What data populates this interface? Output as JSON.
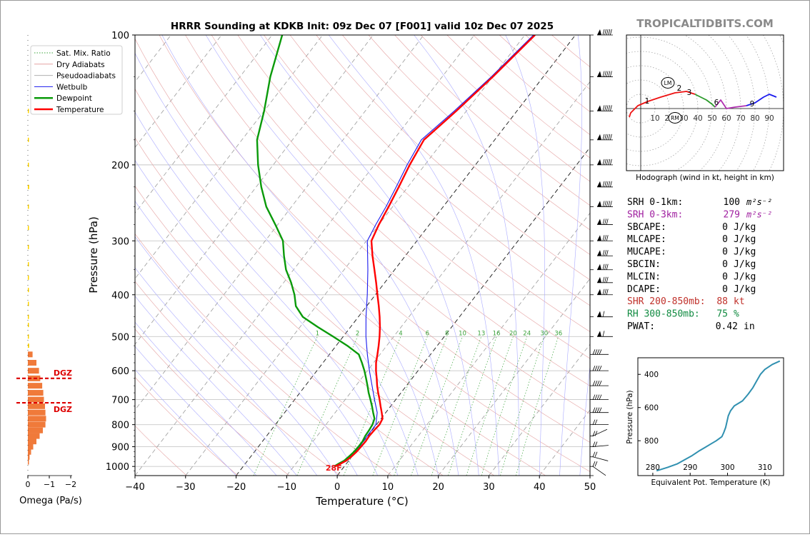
{
  "brand": "TROPICALTIDBITS.COM",
  "title": "HRRR Sounding at KDKB Init: 09z Dec 07 [F001] valid 10z Dec 07 2025",
  "chart_data": [
    {
      "type": "line",
      "name": "skew-t",
      "xlabel": "Temperature (°C)",
      "ylabel": "Pressure (hPa)",
      "xlim": [
        -40,
        50
      ],
      "ylim": [
        1050,
        100
      ],
      "yscale": "log",
      "skew": "isotherms slanted right",
      "x_ticks": [
        -40,
        -30,
        -20,
        -10,
        0,
        10,
        20,
        30,
        40,
        50
      ],
      "y_ticks": [
        100,
        200,
        300,
        400,
        500,
        600,
        700,
        800,
        900,
        1000
      ],
      "grid": true,
      "legend": {
        "position": "top-left",
        "entries": [
          "Sat. Mix. Ratio",
          "Dry Adiabats",
          "Pseudoadiabats",
          "Wetbulb",
          "Dewpoint",
          "Temperature"
        ]
      },
      "mixing_ratio_labels": [
        "1",
        "2",
        "4",
        "6",
        "8",
        "10",
        "13",
        "16",
        "20",
        "24",
        "30",
        "36"
      ],
      "surface_temp_label": "28F",
      "series": [
        {
          "name": "Temperature",
          "color": "#ff0000",
          "points": [
            [
              1000,
              -1.8
            ],
            [
              985,
              -1.1
            ],
            [
              970,
              -0.5
            ],
            [
              950,
              -0.1
            ],
            [
              925,
              0.2
            ],
            [
              900,
              0.3
            ],
            [
              875,
              0.4
            ],
            [
              850,
              0.3
            ],
            [
              825,
              0.4
            ],
            [
              800,
              0.6
            ],
            [
              775,
              0.3
            ],
            [
              750,
              -0.8
            ],
            [
              725,
              -2.0
            ],
            [
              700,
              -3.2
            ],
            [
              675,
              -4.5
            ],
            [
              650,
              -5.8
            ],
            [
              625,
              -7.0
            ],
            [
              600,
              -8.3
            ],
            [
              575,
              -9.5
            ],
            [
              550,
              -10.5
            ],
            [
              525,
              -11.6
            ],
            [
              500,
              -12.8
            ],
            [
              475,
              -14.2
            ],
            [
              450,
              -15.8
            ],
            [
              425,
              -17.6
            ],
            [
              400,
              -19.6
            ],
            [
              375,
              -21.7
            ],
            [
              350,
              -24.0
            ],
            [
              325,
              -26.5
            ],
            [
              300,
              -29.0
            ],
            [
              275,
              -30.0
            ],
            [
              250,
              -30.8
            ],
            [
              225,
              -31.8
            ],
            [
              200,
              -33.0
            ],
            [
              175,
              -34.0
            ],
            [
              150,
              -32.0
            ],
            [
              125,
              -30.0
            ],
            [
              100,
              -28.0
            ]
          ]
        },
        {
          "name": "Dewpoint",
          "color": "#0a9a0a",
          "points": [
            [
              1000,
              -2.0
            ],
            [
              985,
              -1.5
            ],
            [
              970,
              -0.9
            ],
            [
              950,
              -0.6
            ],
            [
              925,
              -0.3
            ],
            [
              900,
              -0.2
            ],
            [
              875,
              -0.2
            ],
            [
              850,
              -0.5
            ],
            [
              825,
              -0.6
            ],
            [
              800,
              -0.8
            ],
            [
              775,
              -1.3
            ],
            [
              750,
              -2.5
            ],
            [
              725,
              -3.7
            ],
            [
              700,
              -5.0
            ],
            [
              675,
              -6.4
            ],
            [
              650,
              -7.7
            ],
            [
              625,
              -9.1
            ],
            [
              600,
              -10.6
            ],
            [
              575,
              -12.3
            ],
            [
              550,
              -14.2
            ],
            [
              525,
              -17.8
            ],
            [
              500,
              -22.0
            ],
            [
              475,
              -26.5
            ],
            [
              450,
              -31.0
            ],
            [
              425,
              -34.0
            ],
            [
              400,
              -36.0
            ],
            [
              375,
              -38.5
            ],
            [
              350,
              -41.5
            ],
            [
              325,
              -44.0
            ],
            [
              300,
              -46.5
            ],
            [
              275,
              -50.5
            ],
            [
              250,
              -55.0
            ],
            [
              225,
              -59.0
            ],
            [
              200,
              -63.0
            ],
            [
              175,
              -67.0
            ],
            [
              150,
              -70.0
            ],
            [
              125,
              -74.0
            ],
            [
              100,
              -78.0
            ]
          ]
        },
        {
          "name": "Wetbulb",
          "color": "#1a1aee",
          "points": [
            [
              1000,
              -1.9
            ],
            [
              950,
              -0.4
            ],
            [
              900,
              0.0
            ],
            [
              850,
              -0.1
            ],
            [
              800,
              -0.1
            ],
            [
              750,
              -1.7
            ],
            [
              700,
              -4.2
            ],
            [
              650,
              -6.8
            ],
            [
              600,
              -9.6
            ],
            [
              550,
              -12.5
            ],
            [
              500,
              -15.5
            ],
            [
              450,
              -18.5
            ],
            [
              400,
              -21.6
            ],
            [
              350,
              -25.3
            ],
            [
              300,
              -29.8
            ],
            [
              275,
              -30.6
            ],
            [
              250,
              -31.3
            ],
            [
              225,
              -32.3
            ],
            [
              200,
              -33.5
            ],
            [
              175,
              -34.5
            ],
            [
              150,
              -32.4
            ],
            [
              125,
              -30.3
            ],
            [
              100,
              -28.3
            ]
          ]
        }
      ]
    },
    {
      "type": "bar",
      "name": "omega",
      "xlabel": "Omega (Pa/s)",
      "x_ticks": [
        "0",
        "−1",
        "−2"
      ],
      "xlim": [
        0,
        -2
      ],
      "dgz_label": "DGZ",
      "dgz_levels": [
        625,
        712
      ],
      "series": [
        {
          "name": "upper",
          "color": "#ffd400",
          "points": [
            [
              150,
              -0.05
            ],
            [
              175,
              -0.05
            ],
            [
              200,
              -0.05
            ],
            [
              225,
              -0.06
            ],
            [
              250,
              -0.05
            ],
            [
              280,
              -0.03
            ],
            [
              310,
              -0.03
            ],
            [
              340,
              -0.04
            ],
            [
              365,
              -0.05
            ],
            [
              390,
              -0.05
            ],
            [
              420,
              -0.04
            ],
            [
              450,
              -0.02
            ],
            [
              470,
              -0.02
            ],
            [
              500,
              -0.05
            ],
            [
              525,
              -0.06
            ]
          ]
        },
        {
          "name": "lower",
          "color": "#f07a3a",
          "points": [
            [
              550,
              -0.22
            ],
            [
              575,
              -0.4
            ],
            [
              600,
              -0.52
            ],
            [
              625,
              -0.58
            ],
            [
              650,
              -0.67
            ],
            [
              675,
              -0.72
            ],
            [
              700,
              -0.75
            ],
            [
              725,
              -0.8
            ],
            [
              750,
              -0.82
            ],
            [
              775,
              -0.85
            ],
            [
              800,
              -0.82
            ],
            [
              825,
              -0.7
            ],
            [
              850,
              -0.55
            ],
            [
              875,
              -0.4
            ],
            [
              900,
              -0.25
            ],
            [
              925,
              -0.15
            ],
            [
              950,
              -0.08
            ],
            [
              975,
              -0.04
            ]
          ]
        }
      ]
    },
    {
      "type": "line",
      "name": "hodograph",
      "xlabel": "Hodograph (wind in kt, height in km)",
      "ring_labels": [
        "10",
        "20",
        "30",
        "40",
        "50",
        "60",
        "70",
        "80",
        "90"
      ],
      "marker_labels": {
        "lm": "LM",
        "rm": "RM",
        "heights": [
          "1",
          "2",
          "3",
          "6",
          "9"
        ]
      },
      "series": [
        {
          "name": "0-3km",
          "color": "#ee1111",
          "points": [
            [
              -8,
              -6
            ],
            [
              -7,
              -3
            ],
            [
              -2,
              2
            ],
            [
              5,
              5
            ],
            [
              14,
              8
            ],
            [
              24,
              11
            ],
            [
              32,
              12
            ],
            [
              38,
              10
            ]
          ]
        },
        {
          "name": "3-6km",
          "color": "#2a9a2a",
          "points": [
            [
              38,
              10
            ],
            [
              46,
              6
            ],
            [
              50,
              3
            ],
            [
              52,
              1
            ]
          ]
        },
        {
          "name": "6-9km",
          "color": "#b030b0",
          "points": [
            [
              52,
              1
            ],
            [
              56,
              6
            ],
            [
              60,
              0
            ],
            [
              66,
              1
            ],
            [
              74,
              2
            ]
          ]
        },
        {
          "name": "9km+",
          "color": "#1a1aee",
          "points": [
            [
              74,
              2
            ],
            [
              80,
              4
            ],
            [
              86,
              8
            ],
            [
              90,
              10
            ],
            [
              95,
              8
            ]
          ]
        }
      ]
    },
    {
      "type": "line",
      "name": "theta-e",
      "xlabel": "Equivalent Pot. Temperature (K)",
      "ylabel": "Pressure (hPa)",
      "x_ticks": [
        "280",
        "290",
        "300",
        "310"
      ],
      "y_ticks": [
        "400",
        "600",
        "800"
      ],
      "xlim": [
        276,
        315
      ],
      "ylim": [
        1010,
        300
      ],
      "series": [
        {
          "name": "theta-e",
          "color": "#3090b0",
          "points": [
            [
              981,
              281.0
            ],
            [
              960,
              284.0
            ],
            [
              940,
              286.5
            ],
            [
              915,
              288.5
            ],
            [
              890,
              290.5
            ],
            [
              860,
              292.5
            ],
            [
              840,
              294.0
            ],
            [
              820,
              295.5
            ],
            [
              800,
              297.0
            ],
            [
              775,
              298.5
            ],
            [
              750,
              299.0
            ],
            [
              720,
              299.5
            ],
            [
              690,
              299.8
            ],
            [
              650,
              300.2
            ],
            [
              620,
              300.8
            ],
            [
              590,
              301.8
            ],
            [
              560,
              304.0
            ],
            [
              520,
              305.5
            ],
            [
              480,
              306.8
            ],
            [
              440,
              307.8
            ],
            [
              400,
              308.8
            ],
            [
              370,
              310.0
            ],
            [
              340,
              312.0
            ],
            [
              320,
              314.0
            ],
            [
              310,
              315.5
            ]
          ]
        }
      ]
    }
  ],
  "indices": [
    {
      "label": "SRH 0-1km:",
      "value": "100",
      "unit": "m²s⁻²",
      "color": "#000000"
    },
    {
      "label": "SRH 0-3km:",
      "value": "279",
      "unit": "m²s⁻²",
      "color": "#a020a0"
    },
    {
      "label": "SBCAPE:",
      "value": "0",
      "unit": "J/kg",
      "color": "#000000"
    },
    {
      "label": "MLCAPE:",
      "value": "0",
      "unit": "J/kg",
      "color": "#000000"
    },
    {
      "label": "MUCAPE:",
      "value": "0",
      "unit": "J/kg",
      "color": "#000000"
    },
    {
      "label": "SBCIN:",
      "value": "0",
      "unit": "J/kg",
      "color": "#000000"
    },
    {
      "label": "MLCIN:",
      "value": "0",
      "unit": "J/kg",
      "color": "#000000"
    },
    {
      "label": "DCAPE:",
      "value": "0",
      "unit": "J/kg",
      "color": "#000000"
    },
    {
      "label": "SHR 200-850mb:",
      "value": "88",
      "unit": "kt",
      "color": "#c0302a"
    },
    {
      "label": "RH 300-850mb:",
      "value": "75",
      "unit": "%",
      "color": "#108a40"
    },
    {
      "label": "PWAT:",
      "value": "0.42",
      "unit": "in",
      "color": "#000000"
    }
  ]
}
